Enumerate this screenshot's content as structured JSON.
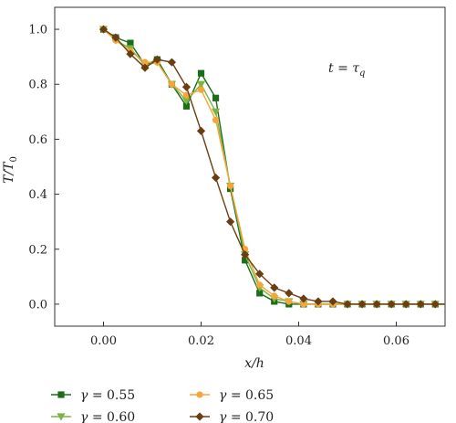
{
  "chart_data": {
    "type": "line",
    "xlabel": "x/h",
    "ylabel": "T/T0",
    "xlim": [
      -0.01,
      0.07
    ],
    "ylim": [
      -0.08,
      1.08
    ],
    "x_ticks": [
      0.0,
      0.02,
      0.04,
      0.06
    ],
    "x_tick_labels": [
      "0.00",
      "0.02",
      "0.04",
      "0.06"
    ],
    "y_ticks": [
      0.0,
      0.2,
      0.4,
      0.6,
      0.8,
      1.0
    ],
    "y_tick_labels": [
      "0.0",
      "0.2",
      "0.4",
      "0.6",
      "0.8",
      "1.0"
    ],
    "grid": false,
    "legend_position": "bottom-outside",
    "annotation": "t = τq",
    "series": [
      {
        "name": "γ = 0.55",
        "color": "#1a6e1a",
        "marker": "square",
        "x": [
          0.0,
          0.0025,
          0.0055,
          0.0085,
          0.011,
          0.014,
          0.017,
          0.02,
          0.023,
          0.026,
          0.029,
          0.032,
          0.035,
          0.038,
          0.041,
          0.044,
          0.047,
          0.05,
          0.053,
          0.056,
          0.059,
          0.062,
          0.065,
          0.068,
          0.071
        ],
        "y": [
          1.0,
          0.97,
          0.95,
          0.87,
          0.89,
          0.8,
          0.72,
          0.84,
          0.75,
          0.42,
          0.16,
          0.04,
          0.01,
          0.0,
          0.0,
          0.0,
          0.0,
          0.0,
          0.0,
          0.0,
          0.0,
          0.0,
          0.0,
          0.0,
          0.0
        ]
      },
      {
        "name": "γ = 0.60",
        "color": "#7cb342",
        "marker": "triangle-down",
        "x": [
          0.0,
          0.0025,
          0.0055,
          0.0085,
          0.011,
          0.014,
          0.017,
          0.02,
          0.023,
          0.026,
          0.029,
          0.032,
          0.035,
          0.038,
          0.041,
          0.044,
          0.047,
          0.05,
          0.053,
          0.056,
          0.059,
          0.062,
          0.065,
          0.068,
          0.071
        ],
        "y": [
          1.0,
          0.96,
          0.93,
          0.87,
          0.88,
          0.8,
          0.74,
          0.8,
          0.7,
          0.43,
          0.18,
          0.06,
          0.02,
          0.01,
          0.0,
          0.0,
          0.0,
          0.0,
          0.0,
          0.0,
          0.0,
          0.0,
          0.0,
          0.0,
          0.0
        ]
      },
      {
        "name": "γ = 0.65",
        "color": "#f4a63a",
        "marker": "circle",
        "x": [
          0.0,
          0.0025,
          0.0055,
          0.0085,
          0.011,
          0.014,
          0.017,
          0.02,
          0.023,
          0.026,
          0.029,
          0.032,
          0.035,
          0.038,
          0.041,
          0.044,
          0.047,
          0.05,
          0.053,
          0.056,
          0.059,
          0.062,
          0.065,
          0.068,
          0.071
        ],
        "y": [
          1.0,
          0.96,
          0.92,
          0.88,
          0.88,
          0.8,
          0.76,
          0.78,
          0.67,
          0.43,
          0.2,
          0.07,
          0.03,
          0.01,
          0.0,
          0.0,
          0.0,
          0.0,
          0.0,
          0.0,
          0.0,
          0.0,
          0.0,
          0.0,
          0.0
        ]
      },
      {
        "name": "γ = 0.70",
        "color": "#6b3d12",
        "marker": "diamond",
        "x": [
          0.0,
          0.0025,
          0.0055,
          0.0085,
          0.011,
          0.014,
          0.017,
          0.02,
          0.023,
          0.026,
          0.029,
          0.032,
          0.035,
          0.038,
          0.041,
          0.044,
          0.047,
          0.05,
          0.053,
          0.056,
          0.059,
          0.062,
          0.065,
          0.068,
          0.071
        ],
        "y": [
          1.0,
          0.97,
          0.91,
          0.86,
          0.89,
          0.88,
          0.79,
          0.63,
          0.46,
          0.3,
          0.18,
          0.11,
          0.06,
          0.04,
          0.02,
          0.01,
          0.01,
          0.0,
          0.0,
          0.0,
          0.0,
          0.0,
          0.0,
          0.0,
          0.0
        ]
      }
    ]
  }
}
